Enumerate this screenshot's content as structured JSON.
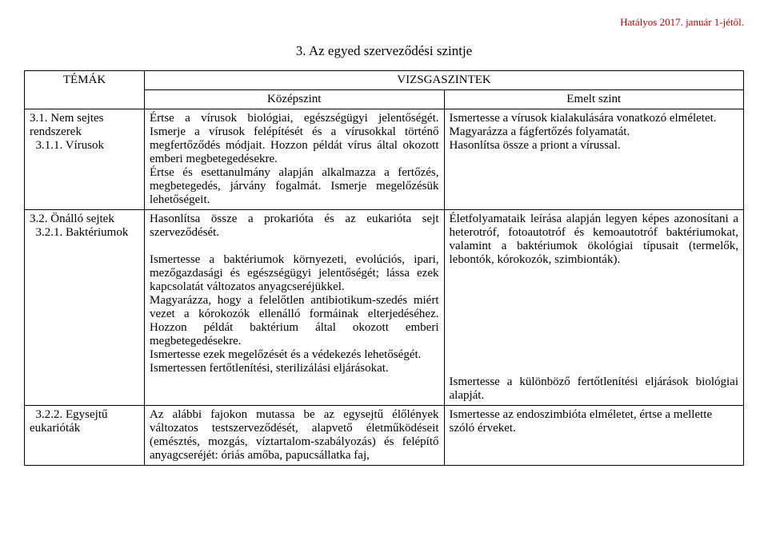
{
  "header_note": "Hatályos 2017. január 1-jétől.",
  "main_title": "3. Az egyed szerveződési szintje",
  "table": {
    "header": {
      "topics": "TÉMÁK",
      "levels": "VIZSGASZINTEK",
      "mid": "Középszint",
      "high": "Emelt szint"
    },
    "rows": [
      {
        "topic": "3.1. Nem sejtes rendszerek\n  3.1.1. Vírusok",
        "mid": "Értse a vírusok biológiai, egészségügyi jelentőségét. Ismerje a vírusok felépítését és a vírusokkal történő megfertőződés módjait. Hozzon példát vírus által okozott emberi megbetegedésekre.\nÉrtse és esettanulmány alapján alkalmazza a fertőzés, megbetegedés, járvány fogalmát. Ismerje megelőzésük lehetőségeit.",
        "high": "Ismertesse a vírusok kialakulására vonatkozó elméletet. Magyarázza a fágfertőzés folyamatát.\nHasonlítsa össze a priont a vírussal."
      },
      {
        "topic": "3.2. Önálló sejtek\n  3.2.1. Baktériumok",
        "mid": "Hasonlítsa össze a prokarióta és az eukarióta sejt szerveződését.\n\nIsmertesse a baktériumok környezeti, evolúciós, ipari, mezőgazdasági és egészségügyi jelentőségét; lássa ezek kapcsolatát változatos anyagcseréjükkel.\nMagyarázza, hogy a felelőtlen antibiotikum-szedés miért vezet a kórokozók ellenálló formáinak elterjedéséhez. Hozzon példát baktérium által okozott emberi megbetegedésekre.\nIsmertesse ezek megelőzését és a védekezés lehetőségét.\nIsmertessen fertőtlenítési, sterilizálási eljárásokat.",
        "high": "Életfolyamataik leírása alapján legyen képes azonosítani a heterotróf, fotoautotróf és kemoautotróf baktériumokat, valamint a baktériumok ökológiai típusait (termelők, lebontók, kórokozók, szimbionták).\n\n\n\n\n\n\n\n\nIsmertesse a különböző fertőtlenítési eljárások biológiai alapját."
      },
      {
        "topic": "  3.2.2. Egysejtű eukarióták",
        "mid": "Az alábbi fajokon mutassa be az egysejtű élőlények változatos testszerveződését, alapvető életműködéseit (emésztés, mozgás, víztartalom-szabályozás) és felépítő anyagcseréjét: óriás amőba, papucsállatka faj,",
        "high": "Ismertesse az endoszimbióta elméletet, értse a mellette szóló érveket."
      }
    ]
  }
}
